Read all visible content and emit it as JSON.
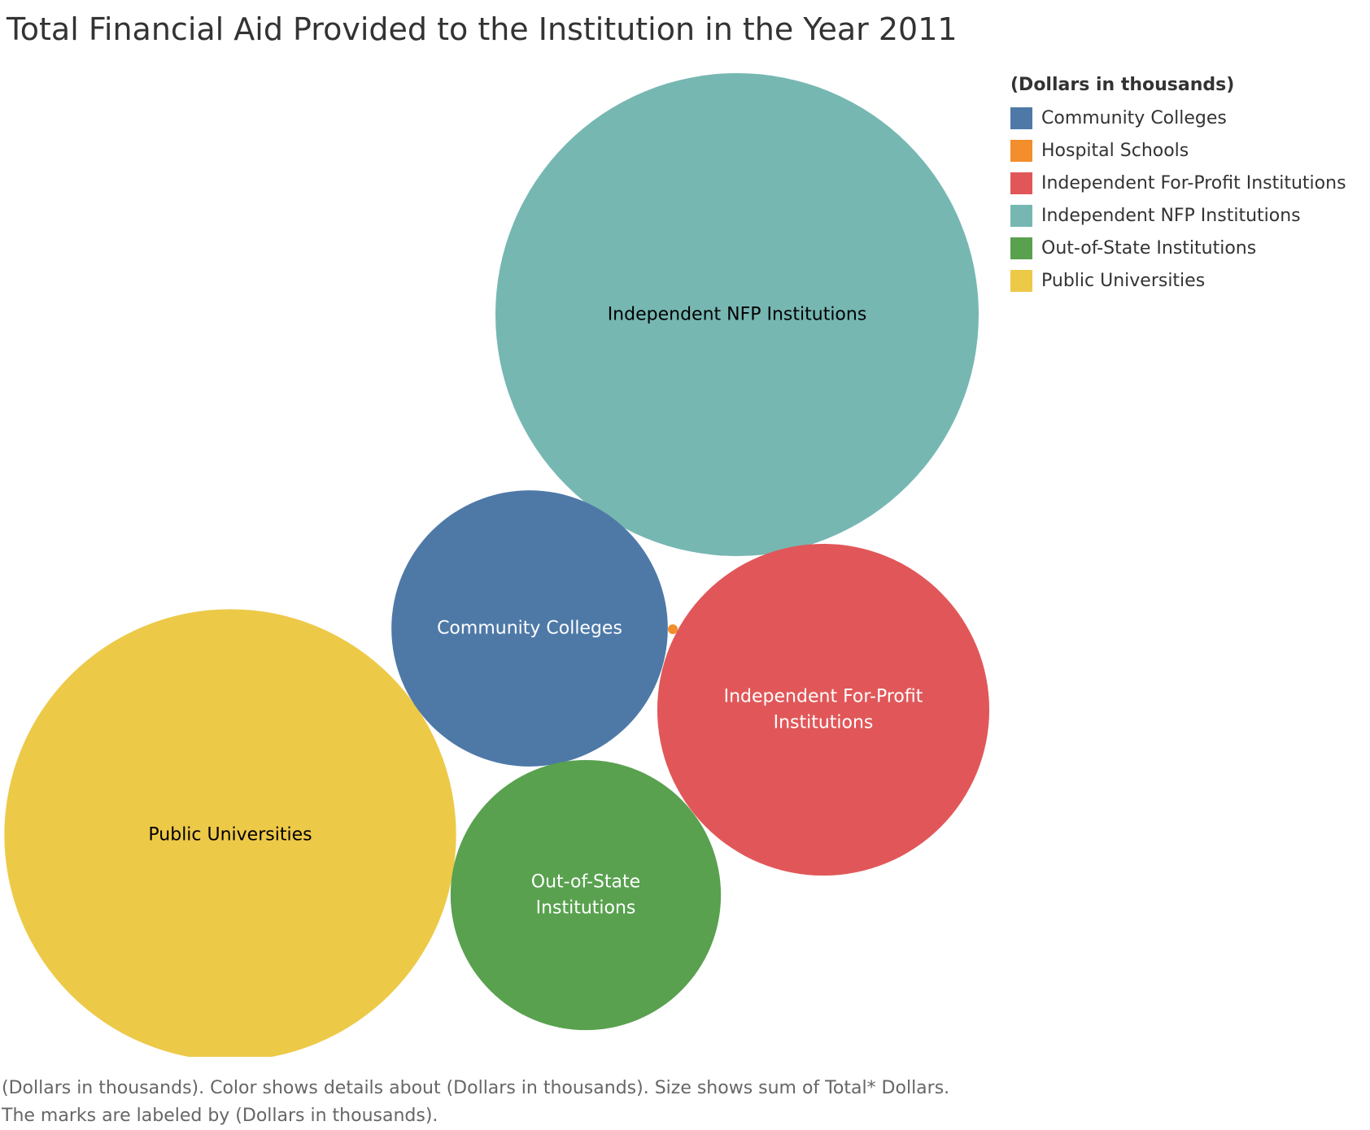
{
  "chart_data": {
    "type": "bubble",
    "title": "Total Financial Aid Provided to the Institution in the Year 2011",
    "legend": {
      "title": "(Dollars in thousands)",
      "placement": "right",
      "entries": [
        {
          "name": "Community Colleges",
          "color": "#4e79a7"
        },
        {
          "name": "Hospital Schools",
          "color": "#f28e2b"
        },
        {
          "name": "Independent For-Profit Institutions",
          "color": "#e15759"
        },
        {
          "name": "Independent NFP Institutions",
          "color": "#76b7b2"
        },
        {
          "name": "Out-of-State Institutions",
          "color": "#59a14f"
        },
        {
          "name": "Public Universities",
          "color": "#edc948"
        }
      ]
    },
    "bubbles": [
      {
        "category": "Independent NFP Institutions",
        "label_lines": [
          "Independent NFP Institutions"
        ],
        "relative_size": 1.0,
        "color": "#76b7b2",
        "label_color": "#000000"
      },
      {
        "category": "Public Universities",
        "label_lines": [
          "Public Universities"
        ],
        "relative_size": 0.874,
        "color": "#edc948",
        "label_color": "#000000"
      },
      {
        "category": "Independent For-Profit Institutions",
        "label_lines": [
          "Independent For-Profit",
          "Institutions"
        ],
        "relative_size": 0.472,
        "color": "#e15759",
        "label_color": "#ffffff"
      },
      {
        "category": "Community Colleges",
        "label_lines": [
          "Community Colleges"
        ],
        "relative_size": 0.327,
        "color": "#4e79a7",
        "label_color": "#ffffff"
      },
      {
        "category": "Out-of-State Institutions",
        "label_lines": [
          "Out-of-State",
          "Institutions"
        ],
        "relative_size": 0.313,
        "color": "#59a14f",
        "label_color": "#ffffff"
      },
      {
        "category": "Hospital Schools",
        "label_lines": [],
        "relative_size": 0.0003,
        "color": "#f28e2b",
        "label_color": "#ffffff"
      }
    ]
  },
  "caption": {
    "line1": "(Dollars in thousands).  Color shows details about (Dollars in thousands).  Size shows sum of Total* Dollars.",
    "line2": "The marks are labeled by (Dollars in thousands)."
  }
}
